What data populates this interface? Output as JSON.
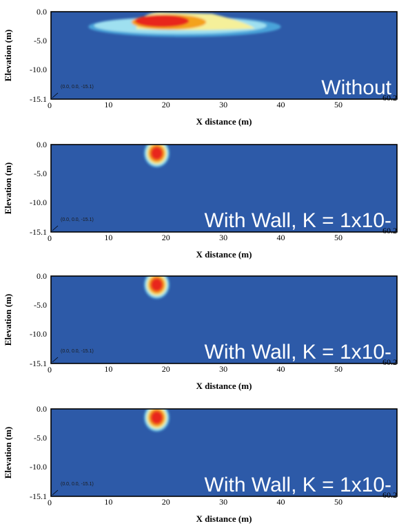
{
  "colors": {
    "background": "#2d5aa8",
    "frame": "#000000",
    "caption": "#ffffff",
    "ramp": [
      "#2d5aa8",
      "#4aa3d9",
      "#9fe0f0",
      "#f5f09a",
      "#f4a21a",
      "#e8261a"
    ]
  },
  "chart_data": [
    {
      "type": "heatmap",
      "title": "",
      "caption": "Without",
      "xlabel": "X distance (m)",
      "ylabel": "Elevation (m)",
      "xlim": [
        0,
        60.2
      ],
      "ylim": [
        -15.1,
        0.0
      ],
      "xticks": [
        "0",
        "10",
        "20",
        "30",
        "40",
        "50",
        "60.2"
      ],
      "yticks": [
        "0.0",
        "-5.0",
        "-10.0",
        "-15.1"
      ],
      "origin_label": "(0.0, 0.0, -15.1)",
      "plume": {
        "x_start": 6.5,
        "x_end": 40.0,
        "core_x": 18.3,
        "core_depth": -1.6,
        "max_depth": -4.4
      }
    },
    {
      "type": "heatmap",
      "title": "",
      "caption": "With Wall, K = 1x10-",
      "xlabel": "X distance (m)",
      "ylabel": "Elevation (m)",
      "xlim": [
        0,
        60.2
      ],
      "ylim": [
        -15.1,
        0.0
      ],
      "xticks": [
        "0",
        "10",
        "20",
        "30",
        "40",
        "50",
        "60.2"
      ],
      "yticks": [
        "0.0",
        "-5.0",
        "-10.0",
        "-15.1"
      ],
      "origin_label": "(0.0, 0.0, -15.1)",
      "plume": {
        "x_start": 16.3,
        "x_end": 20.4,
        "core_x": 18.4,
        "core_depth": -1.5,
        "max_depth": -3.6
      }
    },
    {
      "type": "heatmap",
      "title": "",
      "caption": "With Wall, K = 1x10-",
      "xlabel": "X distance (m)",
      "ylabel": "Elevation (m)",
      "xlim": [
        0,
        60.2
      ],
      "ylim": [
        -15.1,
        0.0
      ],
      "xticks": [
        "0",
        "10",
        "20",
        "30",
        "40",
        "50",
        "60.2"
      ],
      "yticks": [
        "0.0",
        "-5.0",
        "-10.0",
        "-15.1"
      ],
      "origin_label": "(0.0, 0.0, -15.1)",
      "plume": {
        "x_start": 16.3,
        "x_end": 20.4,
        "core_x": 18.4,
        "core_depth": -1.5,
        "max_depth": -3.6
      }
    },
    {
      "type": "heatmap",
      "title": "",
      "caption": "With Wall, K = 1x10-",
      "xlabel": "X distance (m)",
      "ylabel": "Elevation (m)",
      "xlim": [
        0,
        60.2
      ],
      "ylim": [
        -15.1,
        0.0
      ],
      "xticks": [
        "0",
        "10",
        "20",
        "30",
        "40",
        "50",
        "60.2"
      ],
      "yticks": [
        "0.0",
        "-5.0",
        "-10.0",
        "-15.1"
      ],
      "origin_label": "(0.0, 0.0, -15.1)",
      "plume": {
        "x_start": 16.3,
        "x_end": 20.4,
        "core_x": 18.4,
        "core_depth": -1.5,
        "max_depth": -3.6
      }
    }
  ]
}
